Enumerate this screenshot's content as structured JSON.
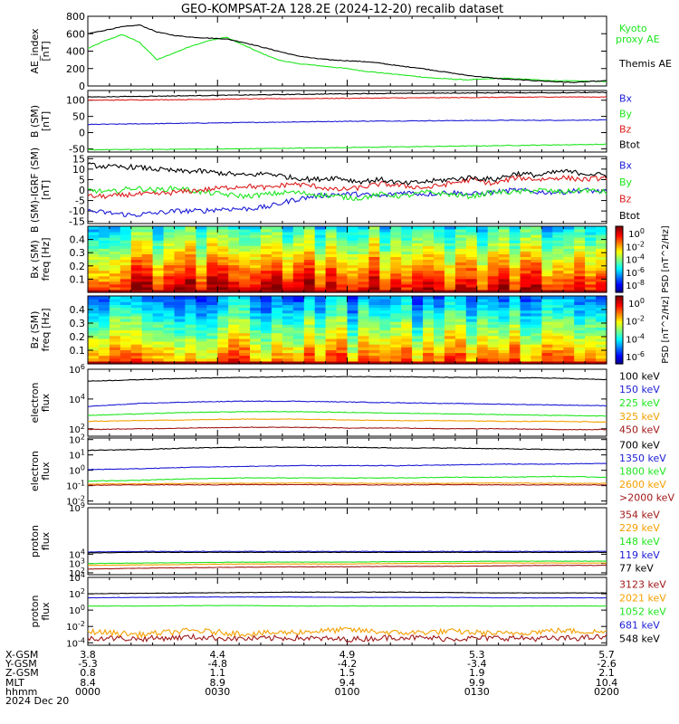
{
  "title": "GEO-KOMPSAT-2A 128.2E (2024-12-20) recalib dataset",
  "colors": {
    "black": "#000000",
    "blue": "#1c1cd6",
    "green": "#1ee61e",
    "red": "#dd1c1c",
    "orange": "#f5a000",
    "maroon": "#a01818",
    "navy": "#000080"
  },
  "chart_data": [
    {
      "type": "line",
      "ylabel": "AE_index [nT]",
      "ylim": [
        0,
        800
      ],
      "yticks": [
        "0",
        "200",
        "400",
        "600",
        "800"
      ],
      "series": [
        {
          "name": "Kyoto proxy AE",
          "color": "green",
          "values": [
            430,
            520,
            590,
            500,
            300,
            380,
            460,
            520,
            560,
            470,
            380,
            300,
            260,
            240,
            220,
            200,
            170,
            150,
            130,
            110,
            90,
            80,
            70,
            80,
            90,
            80,
            70,
            60,
            60,
            55,
            50
          ]
        },
        {
          "name": "Themis AE",
          "color": "black",
          "values": [
            600,
            640,
            680,
            700,
            620,
            580,
            560,
            550,
            540,
            500,
            450,
            400,
            350,
            320,
            300,
            290,
            280,
            260,
            230,
            210,
            180,
            150,
            120,
            100,
            80,
            70,
            60,
            50,
            40,
            50,
            60
          ]
        }
      ],
      "legend_extra": [
        "Kyoto",
        "proxy AE"
      ]
    },
    {
      "type": "line",
      "ylabel": "B (SM) [nT]",
      "ylim": [
        -60,
        130
      ],
      "yticks": [
        "-50",
        "0",
        "50",
        "100"
      ],
      "series": [
        {
          "name": "Bx",
          "color": "blue",
          "values": [
            25,
            27,
            29,
            31,
            33,
            35,
            36,
            37,
            38,
            38,
            39
          ]
        },
        {
          "name": "By",
          "color": "green",
          "values": [
            -53,
            -52,
            -51,
            -50,
            -48,
            -46,
            -44,
            -42,
            -40,
            -38,
            -36
          ]
        },
        {
          "name": "Bz",
          "color": "red",
          "values": [
            100,
            101,
            102,
            104,
            105,
            106,
            107,
            108,
            109,
            110,
            110
          ]
        },
        {
          "name": "Btot",
          "color": "black",
          "values": [
            110,
            112,
            114,
            116,
            118,
            120,
            121,
            122,
            123,
            123,
            124
          ]
        }
      ]
    },
    {
      "type": "line",
      "ylabel": "B (SM)-IGRF (SM) [nT]",
      "ylim": [
        -16,
        16
      ],
      "yticks": [
        "-15",
        "-10",
        "-5",
        "0",
        "5",
        "10",
        "15"
      ],
      "series": [
        {
          "name": "Bx",
          "color": "blue",
          "values": [
            -10,
            -11,
            -12,
            -11,
            -10,
            -10,
            -9,
            -9,
            -8,
            -5,
            -3,
            -2,
            -2,
            -3,
            -1,
            -2,
            -1,
            -2,
            -1,
            0,
            -1,
            -1,
            0,
            -1
          ]
        },
        {
          "name": "By",
          "color": "green",
          "values": [
            0,
            -1,
            1,
            0,
            1,
            -1,
            -2,
            -3,
            -2,
            -1,
            -2,
            -3,
            -4,
            -2,
            -3,
            -1,
            -2,
            -3,
            -1,
            -1,
            0,
            -1,
            0,
            -1
          ]
        },
        {
          "name": "Bz",
          "color": "red",
          "values": [
            -3,
            -3,
            -2,
            -2,
            -1,
            0,
            1,
            2,
            1,
            3,
            2,
            0,
            1,
            3,
            2,
            1,
            3,
            5,
            3,
            6,
            5,
            6,
            5,
            6
          ]
        },
        {
          "name": "Btot",
          "color": "black",
          "values": [
            12,
            11,
            11,
            10,
            9,
            9,
            8,
            7,
            8,
            6,
            5,
            6,
            4,
            5,
            3,
            4,
            5,
            6,
            5,
            8,
            7,
            9,
            8,
            7
          ]
        }
      ]
    },
    {
      "type": "heatmap",
      "ylabel": "Bx (SM) freq [Hz]",
      "ylim": [
        0,
        0.5
      ],
      "yticks": [
        "0.1",
        "0.2",
        "0.3",
        "0.4"
      ],
      "colorbar_label": "PSD [nT^2/Hz]",
      "colorbar_ticks": [
        "10^0",
        "10^-2",
        "10^-4",
        "10^-6",
        "10^-8"
      ]
    },
    {
      "type": "heatmap",
      "ylabel": "Bz (SM) freq [Hz]",
      "ylim": [
        0,
        0.5
      ],
      "yticks": [
        "0.1",
        "0.2",
        "0.3",
        "0.4"
      ],
      "colorbar_label": "PSD [nT^2/Hz]",
      "colorbar_ticks": [
        "10^0",
        "10^-2",
        "10^-4",
        "10^-6"
      ]
    },
    {
      "type": "line",
      "ylabel": "electron flux",
      "scale": "log",
      "ylim_log10": [
        1.5,
        6
      ],
      "yticks": [
        "10^6",
        "10^4",
        "10^2"
      ],
      "series": [
        {
          "name": "100 keV",
          "color": "black",
          "log10": [
            5.2,
            5.3,
            5.4,
            5.45,
            5.5,
            5.5,
            5.5,
            5.45,
            5.45,
            5.4,
            5.3
          ]
        },
        {
          "name": "150 keV",
          "color": "blue",
          "log10": [
            3.5,
            3.7,
            3.8,
            3.85,
            3.85,
            3.8,
            3.75,
            3.7,
            3.65,
            3.6,
            3.55
          ]
        },
        {
          "name": "225 keV",
          "color": "green",
          "log10": [
            2.9,
            3.0,
            3.1,
            3.15,
            3.15,
            3.1,
            3.05,
            3.0,
            2.95,
            2.9,
            2.85
          ]
        },
        {
          "name": "325 keV",
          "color": "orange",
          "log10": [
            2.5,
            2.55,
            2.6,
            2.65,
            2.65,
            2.6,
            2.55,
            2.55,
            2.5,
            2.5,
            2.45
          ]
        },
        {
          "name": "450 keV",
          "color": "maroon",
          "log10": [
            1.95,
            2.0,
            2.05,
            2.1,
            2.1,
            2.05,
            2.05,
            2.0,
            2.0,
            1.95,
            1.95
          ]
        }
      ]
    },
    {
      "type": "line",
      "ylabel": "electron flux",
      "scale": "log",
      "ylim_log10": [
        -2.2,
        2.1
      ],
      "yticks": [
        "10^2",
        "10^1",
        "10^0",
        "10^-1",
        "10^-2"
      ],
      "series": [
        {
          "name": "700 keV",
          "color": "black",
          "log10": [
            1.3,
            1.35,
            1.45,
            1.5,
            1.5,
            1.5,
            1.45,
            1.45,
            1.4,
            1.35,
            1.35
          ]
        },
        {
          "name": "1350 keV",
          "color": "blue",
          "log10": [
            0.05,
            0.1,
            0.2,
            0.25,
            0.3,
            0.3,
            0.3,
            0.35,
            0.4,
            0.4,
            0.45
          ]
        },
        {
          "name": "1800 keV",
          "color": "green",
          "log10": [
            -0.7,
            -0.65,
            -0.55,
            -0.5,
            -0.5,
            -0.5,
            -0.5,
            -0.45,
            -0.45,
            -0.4,
            -0.45
          ]
        },
        {
          "name": "2600 keV",
          "color": "orange",
          "log10": [
            -0.9,
            -0.88,
            -0.85,
            -0.85,
            -0.83,
            -0.85,
            -0.85,
            -0.85,
            -0.83,
            -0.85,
            -0.85
          ]
        },
        {
          "name": ">2000 keV",
          "color": "maroon",
          "log10": [
            -0.98,
            -0.95,
            -0.95,
            -0.93,
            -0.93,
            -0.95,
            -0.95,
            -0.93,
            -0.95,
            -0.95,
            -0.95
          ]
        }
      ]
    },
    {
      "type": "line",
      "ylabel": "proton flux",
      "scale": "log",
      "ylim_log10": [
        1.8,
        9
      ],
      "yticks": [
        "10^9",
        "10^4",
        "10^3",
        "10^2"
      ],
      "series": [
        {
          "name": "354 keV",
          "color": "maroon",
          "log10": [
            2.4,
            2.5,
            2.55,
            2.6,
            2.65,
            2.65,
            2.7,
            2.7,
            2.75,
            2.8,
            2.8
          ]
        },
        {
          "name": "229 keV",
          "color": "orange",
          "log10": [
            2.8,
            2.85,
            2.9,
            2.95,
            2.95,
            2.95,
            3.0,
            3.0,
            3.05,
            3.05,
            3.05
          ]
        },
        {
          "name": "148 keV",
          "color": "green",
          "log10": [
            3.0,
            3.05,
            3.1,
            3.15,
            3.15,
            3.15,
            3.2,
            3.2,
            3.25,
            3.25,
            3.25
          ]
        },
        {
          "name": "119 keV",
          "color": "blue",
          "log10": [
            4.25,
            4.3,
            4.3,
            4.3,
            4.3,
            4.3,
            4.3,
            4.3,
            4.3,
            4.3,
            4.3
          ]
        },
        {
          "name": "77 keV",
          "color": "black",
          "log10": [
            4.15,
            4.2,
            4.2,
            4.2,
            4.2,
            4.2,
            4.2,
            4.2,
            4.2,
            4.2,
            4.2
          ]
        }
      ]
    },
    {
      "type": "line",
      "ylabel": "proton flux",
      "scale": "log",
      "ylim_log10": [
        -4.3,
        4
      ],
      "yticks": [
        "10^4",
        "10^2",
        "10^0",
        "10^-2",
        "10^-4"
      ],
      "series": [
        {
          "name": "3123 keV",
          "color": "maroon",
          "log10": [
            -3.4,
            -3.5,
            -3.3,
            -3.5,
            -3.4,
            -3.6,
            -3.3,
            -3.5,
            -3.4,
            -3.5,
            -3.3
          ]
        },
        {
          "name": "2021 keV",
          "color": "orange",
          "log10": [
            -2.6,
            -3.0,
            -2.5,
            -2.9,
            -2.7,
            -2.4,
            -2.8,
            -2.6,
            -2.9,
            -2.5,
            -2.7
          ]
        },
        {
          "name": "1052 keV",
          "color": "green",
          "log10": [
            0.5,
            0.5,
            0.55,
            0.55,
            0.5,
            0.5,
            0.5,
            0.5,
            0.5,
            0.5,
            0.5
          ]
        },
        {
          "name": "681 keV",
          "color": "blue",
          "log10": [
            1.5,
            1.55,
            1.6,
            1.6,
            1.6,
            1.55,
            1.55,
            1.55,
            1.5,
            1.5,
            1.5
          ]
        },
        {
          "name": "548 keV",
          "color": "black",
          "log10": [
            2.0,
            2.05,
            2.1,
            2.15,
            2.2,
            2.2,
            2.2,
            2.15,
            2.1,
            2.1,
            2.1
          ]
        }
      ]
    }
  ],
  "xaxis": {
    "row_labels": [
      "X-GSM",
      "Y-GSM",
      "Z-GSM",
      "MLT",
      "hhmm",
      "2024 Dec 20"
    ],
    "columns": [
      [
        "3.8",
        "-5.3",
        "0.8",
        "8.4",
        "0000"
      ],
      [
        "4.4",
        "-4.8",
        "1.1",
        "8.9",
        "0030"
      ],
      [
        "4.9",
        "-4.2",
        "1.5",
        "9.4",
        "0100"
      ],
      [
        "5.3",
        "-3.4",
        "1.9",
        "9.9",
        "0130"
      ],
      [
        "5.7",
        "-2.6",
        "2.1",
        "10.4",
        "0200"
      ]
    ]
  }
}
